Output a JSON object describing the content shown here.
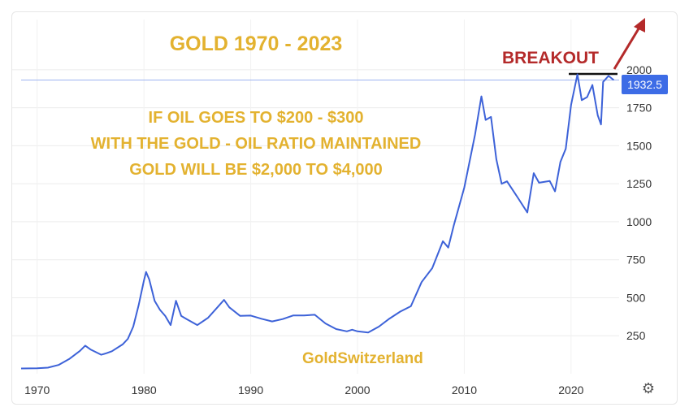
{
  "chart_data": {
    "type": "line",
    "title": "GOLD  1970 - 2023",
    "annotations": {
      "note_lines": [
        "IF OIL GOES TO $200 - $300",
        "WITH THE GOLD - OIL RATIO MAINTAINED",
        "GOLD WILL BE $2,000 TO $4,000"
      ],
      "breakout_label": "BREAKOUT",
      "source_label": "GoldSwitzerland",
      "last_value_label": "1932.5",
      "resistance_level": 1932.5
    },
    "x_ticks": [
      "1970",
      "1980",
      "1990",
      "2000",
      "2010",
      "2020"
    ],
    "y_ticks": [
      "250",
      "500",
      "750",
      "1000",
      "1250",
      "1500",
      "1750",
      "2000"
    ],
    "xlim": [
      1968.5,
      2024.5
    ],
    "ylim": [
      0,
      2010
    ],
    "grid": true,
    "colors": {
      "line": "#3d62d8",
      "annotation_text": "#e3b230",
      "breakout": "#b42a2a",
      "value_tag": "#3d6ce6"
    },
    "series": [
      {
        "x": [
          1968.5,
          1970,
          1971,
          1972,
          1973,
          1974,
          1974.5,
          1975,
          1976,
          1976.5,
          1977,
          1978,
          1978.5,
          1979,
          1979.5,
          1980,
          1980.2,
          1980.5,
          1981,
          1981.5,
          1982,
          1982.5,
          1983,
          1983.5,
          1984,
          1985,
          1986,
          1987,
          1987.5,
          1988,
          1989,
          1990,
          1991,
          1992,
          1993,
          1994,
          1995,
          1996,
          1997,
          1998,
          1999,
          1999.5,
          2000,
          2001,
          2002,
          2003,
          2004,
          2005,
          2006,
          2007,
          2008,
          2008.5,
          2009,
          2010,
          2011,
          2011.6,
          2012,
          2012.5,
          2013,
          2013.5,
          2014,
          2015,
          2015.9,
          2016.5,
          2017,
          2018,
          2018.5,
          2019,
          2019.5,
          2020,
          2020.6,
          2021,
          2021.5,
          2022,
          2022.5,
          2022.8,
          2023,
          2023.5,
          2024
        ],
        "values": [
          35,
          36,
          40,
          58,
          97,
          150,
          185,
          160,
          125,
          135,
          148,
          193,
          230,
          310,
          450,
          612,
          670,
          620,
          480,
          420,
          380,
          320,
          480,
          380,
          360,
          320,
          368,
          446,
          486,
          437,
          381,
          383,
          362,
          344,
          360,
          384,
          384,
          388,
          331,
          294,
          279,
          290,
          279,
          271,
          310,
          363,
          409,
          444,
          603,
          695,
          872,
          830,
          972,
          1224,
          1571,
          1825,
          1670,
          1690,
          1411,
          1250,
          1266,
          1160,
          1061,
          1320,
          1257,
          1268,
          1200,
          1393,
          1480,
          1770,
          1970,
          1800,
          1820,
          1900,
          1700,
          1640,
          1920,
          1960,
          1932.5
        ]
      }
    ]
  }
}
